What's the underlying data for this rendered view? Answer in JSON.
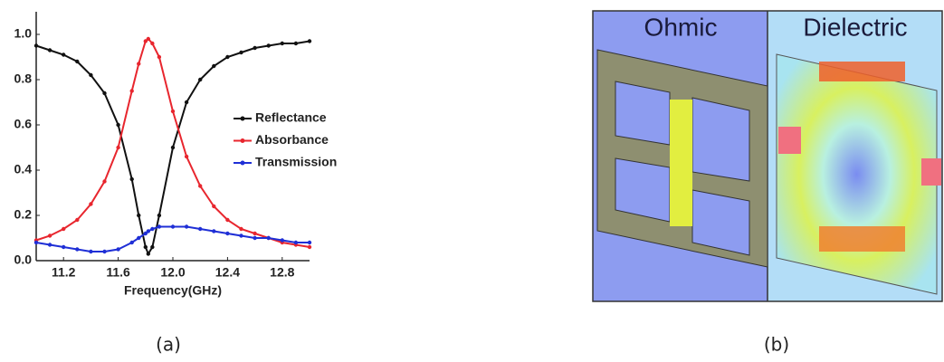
{
  "chart_data": {
    "type": "line",
    "x_label": "Frequency(GHz)",
    "x": [
      11.0,
      11.1,
      11.2,
      11.3,
      11.4,
      11.5,
      11.6,
      11.7,
      11.75,
      11.8,
      11.82,
      11.85,
      11.9,
      12.0,
      12.1,
      12.2,
      12.3,
      12.4,
      12.5,
      12.6,
      12.7,
      12.8,
      12.9,
      13.0
    ],
    "series": [
      {
        "name": "Reflectance",
        "color": "#111111",
        "values": [
          0.95,
          0.93,
          0.91,
          0.88,
          0.82,
          0.74,
          0.6,
          0.36,
          0.2,
          0.06,
          0.03,
          0.06,
          0.2,
          0.5,
          0.7,
          0.8,
          0.86,
          0.9,
          0.92,
          0.94,
          0.95,
          0.96,
          0.96,
          0.97
        ]
      },
      {
        "name": "Absorbance",
        "color": "#e8262e",
        "values": [
          0.09,
          0.11,
          0.14,
          0.18,
          0.25,
          0.35,
          0.5,
          0.75,
          0.87,
          0.97,
          0.98,
          0.96,
          0.9,
          0.66,
          0.46,
          0.33,
          0.24,
          0.18,
          0.14,
          0.12,
          0.1,
          0.08,
          0.07,
          0.06
        ]
      },
      {
        "name": "Transmission",
        "color": "#1f2fd6",
        "values": [
          0.08,
          0.07,
          0.06,
          0.05,
          0.04,
          0.04,
          0.05,
          0.08,
          0.1,
          0.12,
          0.13,
          0.14,
          0.15,
          0.15,
          0.15,
          0.14,
          0.13,
          0.12,
          0.11,
          0.1,
          0.1,
          0.09,
          0.08,
          0.08
        ]
      }
    ],
    "xlim": [
      11.0,
      13.0
    ],
    "ylim": [
      0,
      1.1
    ],
    "xticks": [
      11.2,
      11.6,
      {
        "value": 12,
        "label": "12.0"
      },
      12.4,
      12.8
    ],
    "yticks": [
      {
        "value": 0,
        "label": "0.0"
      },
      0.2,
      0.4,
      0.6,
      0.8,
      {
        "value": 1,
        "label": "1.0"
      }
    ],
    "legend": "right"
  },
  "panel_a": {
    "caption": "(a)"
  },
  "panel_b": {
    "left_label": "Ohmic",
    "right_label": "Dielectric",
    "caption": "(b)"
  }
}
